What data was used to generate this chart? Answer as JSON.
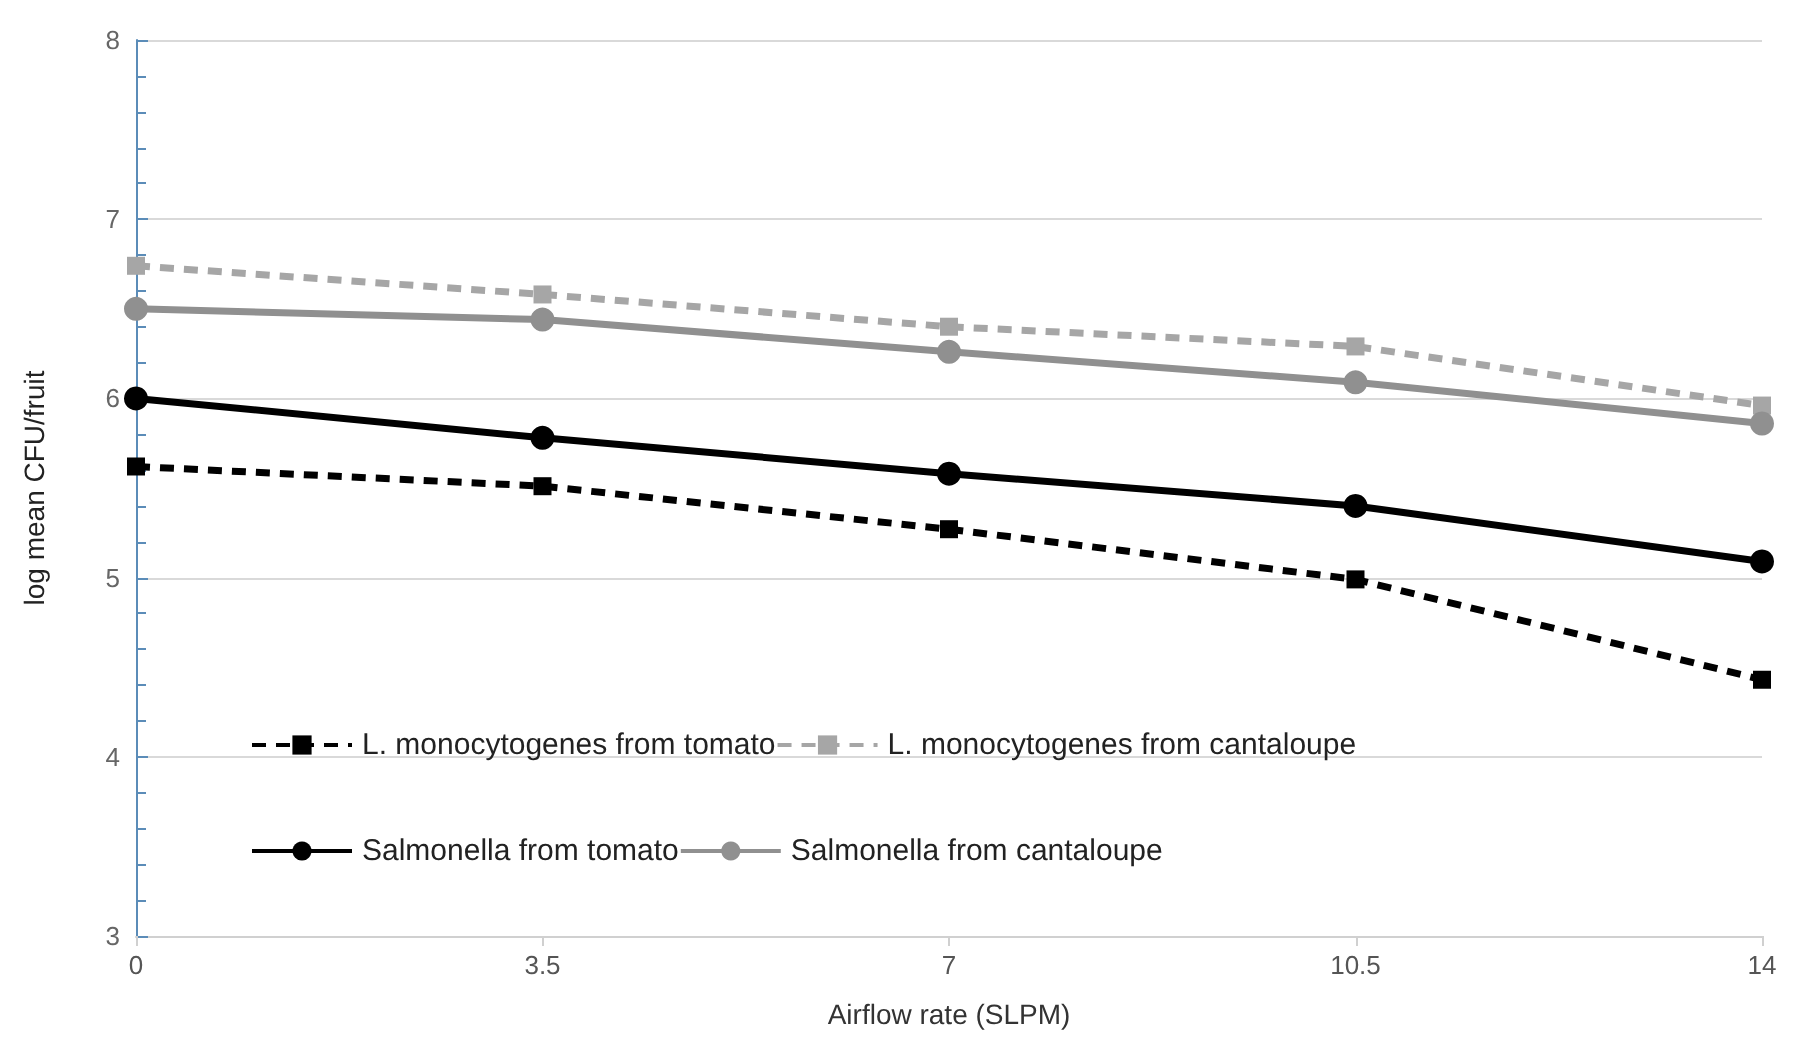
{
  "chart_data": {
    "type": "line",
    "xlabel": "Airflow rate (SLPM)",
    "ylabel": "log mean CFU/fruit",
    "x": [
      0,
      3.5,
      7,
      10.5,
      14
    ],
    "xlim": [
      0,
      14
    ],
    "xticks": [
      0,
      3.5,
      7,
      10.5,
      14
    ],
    "ylim": [
      3,
      8
    ],
    "yticks": [
      3,
      4,
      5,
      6,
      7,
      8
    ],
    "grid": "y",
    "legend": "bottom",
    "series": [
      {
        "name": "L. monocytogenes from tomato",
        "color": "#000000",
        "marker": "square",
        "line_style": "dashed",
        "values": [
          5.62,
          5.51,
          5.27,
          4.99,
          4.43
        ]
      },
      {
        "name": "L. monocytogenes from cantaloupe",
        "color": "#a6a6a6",
        "marker": "square",
        "line_style": "dashed",
        "values": [
          6.74,
          6.58,
          6.4,
          6.29,
          5.96
        ]
      },
      {
        "name": "Salmonella from tomato",
        "color": "#000000",
        "marker": "circle",
        "line_style": "solid",
        "values": [
          6.0,
          5.78,
          5.58,
          5.4,
          5.09
        ]
      },
      {
        "name": "Salmonella from cantaloupe",
        "color": "#909090",
        "marker": "circle",
        "line_style": "solid",
        "values": [
          6.5,
          6.44,
          6.26,
          6.09,
          5.86
        ]
      }
    ]
  }
}
